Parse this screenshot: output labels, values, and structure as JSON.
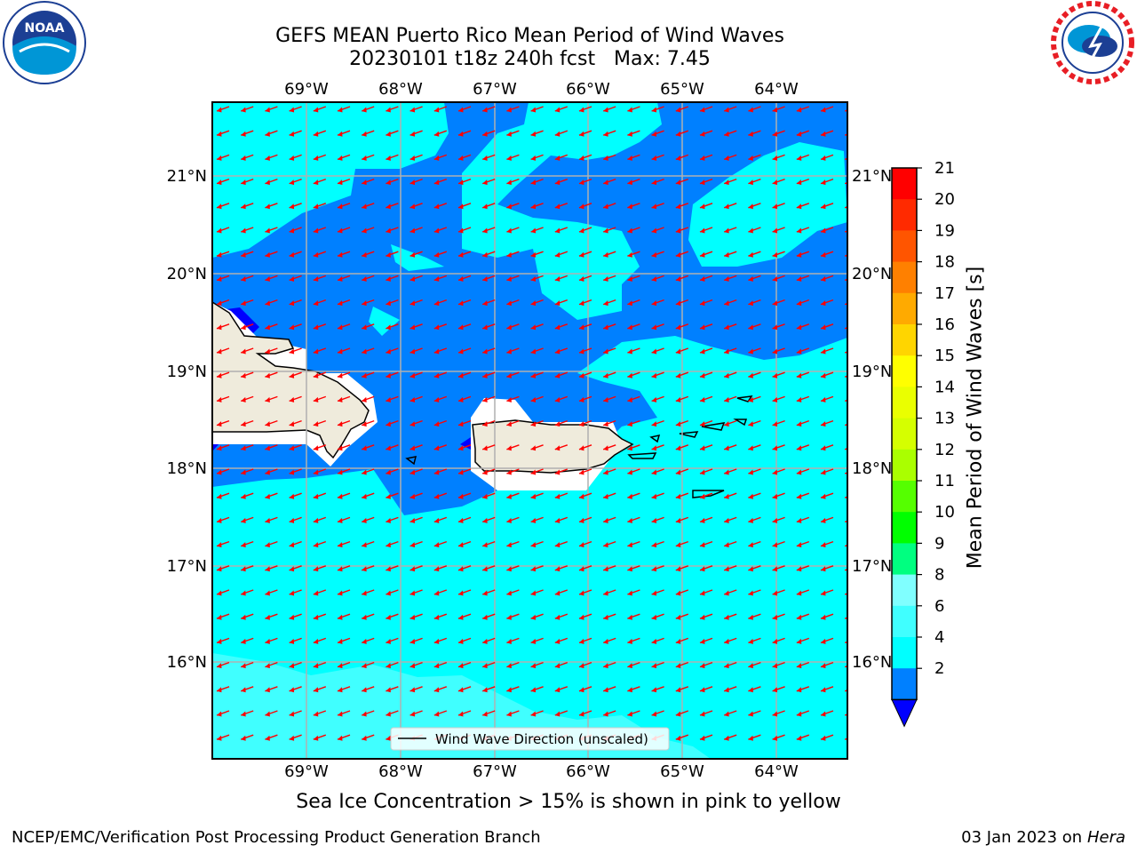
{
  "title": {
    "line1": "GEFS MEAN Puerto Rico Mean Period of Wind Waves",
    "line2": "20230101 t18z 240h fcst   Max: 7.45"
  },
  "map": {
    "lon_labels": [
      "69°W",
      "68°W",
      "67°W",
      "66°W",
      "65°W",
      "64°W"
    ],
    "lat_labels": [
      "21°N",
      "20°N",
      "19°N",
      "18°N",
      "17°N",
      "16°N"
    ],
    "legend_label": "Wind Wave Direction (unscaled)",
    "arrow_color": "#ff0000",
    "land_color": "#efebdc",
    "ocean_colors": {
      "2-4": "#0080ff",
      "4-6": "#00ffff",
      "6-8": "#40ffff",
      "below-2": "#0000ff"
    }
  },
  "colorbar": {
    "label": "Mean Period of Wind Waves [s]",
    "ticks": [
      "21",
      "20",
      "19",
      "18",
      "17",
      "16",
      "15",
      "14",
      "13",
      "12",
      "11",
      "10",
      "9",
      "8",
      "6",
      "4",
      "2"
    ],
    "colors": [
      "#ff0000",
      "#ff2a00",
      "#ff5500",
      "#ff8000",
      "#ffaa00",
      "#ffd500",
      "#ffff00",
      "#eaff00",
      "#d5ff00",
      "#aaff00",
      "#55ff00",
      "#00ff00",
      "#00ff80",
      "#80ffff",
      "#40ffff",
      "#00ffff",
      "#0080ff"
    ],
    "extend_color": "#0000ff"
  },
  "logos": {
    "left": "NOAA",
    "right": "NATIONAL WEATHER SERVICE"
  },
  "caption": "Sea Ice Concentration > 15% is shown in pink to yellow",
  "footer": {
    "left": "NCEP/EMC/Verification Post Processing Product Generation Branch",
    "right_date": "03 Jan 2023 on",
    "right_host": "Hera"
  }
}
